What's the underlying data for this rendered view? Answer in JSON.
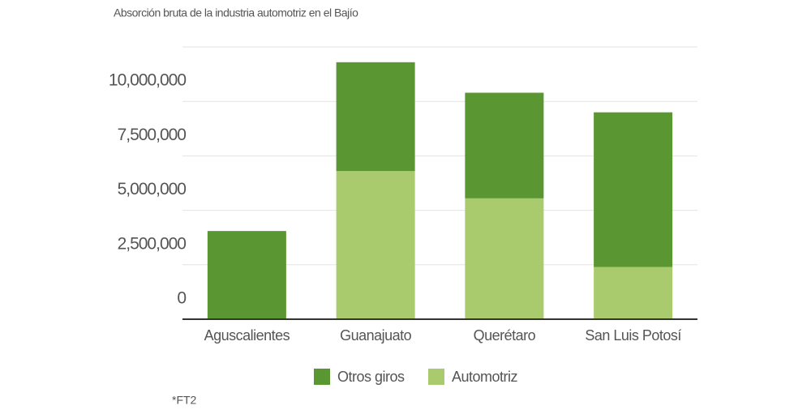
{
  "chart_data": {
    "type": "stacked_bar",
    "title": "Absorción bruta de la industria automotriz en el Bajío",
    "categories": [
      "Aguscalientes",
      "Guanajuato",
      "Querétaro",
      "San Luis Potosí"
    ],
    "series": [
      {
        "name": "Automotriz",
        "color": "#a9cb6e",
        "values": [
          0,
          6800000,
          5550000,
          2400000
        ]
      },
      {
        "name": "Otros giros",
        "color": "#5a9632",
        "values": [
          4050000,
          5000000,
          4850000,
          7100000
        ]
      }
    ],
    "ylim": [
      0,
      12500000
    ],
    "yticks": [
      0,
      {
        "value": 2500000,
        "label": "2,500,000"
      },
      {
        "value": 5000000,
        "label": "5,000,000"
      },
      {
        "value": 7500000,
        "label": "7,500,000"
      },
      {
        "value": 10000000,
        "label": "10,000,000"
      }
    ],
    "grid": true,
    "footnote": "*FT2"
  }
}
